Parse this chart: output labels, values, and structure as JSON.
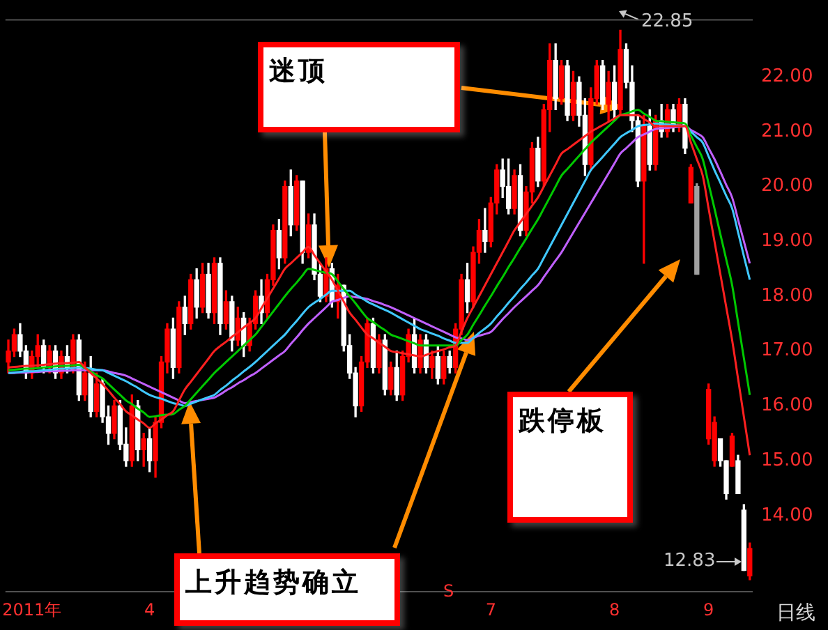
{
  "chart_data": {
    "type": "candlestick",
    "categories": [
      null,
      null,
      null,
      null,
      "2011年",
      null,
      null,
      null,
      null,
      null,
      null,
      null,
      null,
      null,
      null,
      null,
      null,
      null,
      null,
      null,
      null,
      null,
      null,
      null,
      "4",
      null,
      null,
      null,
      null,
      null,
      null,
      null,
      null,
      null,
      null,
      null,
      null,
      null,
      null,
      null,
      null,
      null,
      null,
      null,
      null,
      null,
      null,
      null,
      null,
      null,
      null,
      null,
      null,
      null,
      null,
      null,
      null,
      null,
      null,
      null,
      null,
      null,
      null,
      null,
      null,
      null,
      null,
      null,
      null,
      null,
      null,
      null,
      null,
      null,
      null,
      null,
      null,
      null,
      null,
      null,
      null,
      null,
      "7",
      null,
      null,
      null,
      null,
      null,
      null,
      null,
      null,
      null,
      null,
      null,
      null,
      null,
      null,
      null,
      null,
      null,
      null,
      null,
      null,
      "8",
      null,
      null,
      null,
      null,
      null,
      null,
      null,
      null,
      null,
      null,
      null,
      null,
      null,
      null,
      null,
      "9",
      null,
      null,
      null,
      null,
      null,
      null,
      null
    ],
    "ohlc": [
      [
        16.8,
        17.2,
        16.6,
        17.0
      ],
      [
        17.0,
        17.4,
        16.9,
        17.3
      ],
      [
        17.3,
        17.5,
        16.9,
        17.0
      ],
      [
        17.0,
        17.1,
        16.5,
        16.6
      ],
      [
        16.6,
        17.0,
        16.5,
        16.9
      ],
      [
        16.9,
        17.3,
        16.7,
        17.1
      ],
      [
        17.1,
        17.2,
        16.6,
        16.7
      ],
      [
        16.7,
        17.1,
        16.6,
        17.0
      ],
      [
        17.0,
        17.1,
        16.5,
        16.6
      ],
      [
        16.6,
        17.0,
        16.5,
        16.9
      ],
      [
        16.9,
        17.1,
        16.6,
        16.7
      ],
      [
        16.7,
        17.3,
        16.6,
        17.2
      ],
      [
        17.2,
        17.3,
        16.1,
        16.2
      ],
      [
        16.2,
        16.8,
        16.1,
        16.6
      ],
      [
        16.6,
        16.9,
        15.8,
        15.9
      ],
      [
        15.9,
        16.6,
        15.8,
        16.4
      ],
      [
        16.4,
        16.5,
        15.7,
        15.8
      ],
      [
        15.8,
        16.0,
        15.3,
        15.5
      ],
      [
        15.5,
        16.1,
        15.4,
        16.0
      ],
      [
        16.0,
        16.1,
        15.2,
        15.3
      ],
      [
        15.3,
        15.6,
        14.9,
        15.0
      ],
      [
        15.0,
        16.2,
        14.9,
        16.0
      ],
      [
        16.0,
        16.1,
        15.0,
        15.2
      ],
      [
        15.2,
        15.5,
        14.9,
        15.4
      ],
      [
        15.4,
        15.6,
        14.8,
        15.0
      ],
      [
        15.0,
        15.8,
        14.7,
        15.7
      ],
      [
        15.7,
        16.9,
        15.6,
        16.8
      ],
      [
        16.8,
        17.5,
        16.6,
        17.4
      ],
      [
        17.4,
        17.6,
        16.5,
        16.7
      ],
      [
        16.7,
        17.9,
        16.6,
        17.8
      ],
      [
        17.8,
        18.0,
        17.3,
        17.5
      ],
      [
        17.5,
        18.4,
        17.4,
        18.3
      ],
      [
        18.3,
        18.5,
        17.6,
        17.8
      ],
      [
        17.8,
        18.6,
        17.7,
        18.4
      ],
      [
        18.4,
        18.6,
        17.6,
        17.7
      ],
      [
        17.7,
        18.7,
        17.5,
        18.6
      ],
      [
        18.6,
        18.7,
        17.3,
        17.5
      ],
      [
        17.5,
        18.1,
        17.4,
        17.9
      ],
      [
        17.9,
        18.0,
        17.0,
        17.2
      ],
      [
        17.2,
        17.8,
        17.1,
        17.6
      ],
      [
        17.6,
        17.7,
        16.9,
        17.1
      ],
      [
        17.1,
        17.6,
        17.0,
        17.5
      ],
      [
        17.5,
        18.1,
        17.4,
        18.0
      ],
      [
        18.0,
        18.3,
        17.5,
        17.7
      ],
      [
        17.7,
        18.4,
        17.6,
        18.3
      ],
      [
        18.3,
        19.3,
        18.2,
        19.2
      ],
      [
        19.2,
        19.4,
        18.5,
        18.7
      ],
      [
        18.7,
        20.1,
        18.6,
        20.0
      ],
      [
        20.0,
        20.3,
        19.1,
        19.3
      ],
      [
        19.3,
        20.2,
        19.2,
        20.1
      ],
      [
        20.1,
        20.1,
        18.6,
        18.8
      ],
      [
        18.8,
        19.5,
        18.7,
        19.3
      ],
      [
        19.3,
        19.5,
        18.3,
        18.4
      ],
      [
        18.4,
        18.6,
        17.9,
        18.0
      ],
      [
        18.0,
        18.7,
        17.9,
        18.5
      ],
      [
        18.5,
        18.6,
        17.8,
        17.9
      ],
      [
        17.9,
        18.4,
        17.6,
        18.2
      ],
      [
        18.2,
        18.2,
        17.0,
        17.1
      ],
      [
        17.1,
        17.3,
        16.5,
        16.6
      ],
      [
        16.6,
        16.7,
        15.8,
        16.0
      ],
      [
        16.0,
        16.9,
        15.9,
        16.8
      ],
      [
        16.8,
        17.6,
        16.7,
        17.5
      ],
      [
        17.5,
        17.6,
        16.6,
        16.7
      ],
      [
        16.7,
        17.3,
        16.6,
        17.2
      ],
      [
        17.2,
        17.3,
        16.2,
        16.3
      ],
      [
        16.3,
        16.8,
        16.2,
        16.7
      ],
      [
        16.7,
        17.0,
        16.1,
        16.2
      ],
      [
        16.2,
        17.0,
        16.1,
        16.9
      ],
      [
        16.9,
        17.4,
        16.8,
        17.3
      ],
      [
        17.3,
        17.6,
        16.6,
        16.7
      ],
      [
        16.7,
        17.3,
        16.6,
        17.2
      ],
      [
        17.2,
        17.3,
        16.6,
        16.7
      ],
      [
        16.7,
        17.0,
        16.5,
        16.9
      ],
      [
        16.9,
        17.1,
        16.4,
        16.5
      ],
      [
        16.5,
        17.0,
        16.4,
        16.9
      ],
      [
        16.9,
        17.0,
        16.6,
        16.7
      ],
      [
        16.7,
        17.5,
        16.6,
        17.4
      ],
      [
        17.4,
        18.4,
        17.3,
        18.3
      ],
      [
        18.3,
        18.6,
        17.7,
        17.9
      ],
      [
        17.9,
        18.9,
        17.8,
        18.8
      ],
      [
        18.8,
        19.4,
        18.6,
        19.2
      ],
      [
        19.2,
        19.6,
        18.8,
        19.0
      ],
      [
        19.0,
        19.8,
        18.9,
        19.7
      ],
      [
        19.7,
        20.4,
        19.5,
        20.3
      ],
      [
        20.3,
        20.5,
        19.8,
        20.0
      ],
      [
        20.0,
        20.5,
        19.5,
        19.6
      ],
      [
        19.6,
        20.3,
        19.5,
        20.2
      ],
      [
        20.2,
        20.4,
        19.1,
        19.2
      ],
      [
        19.2,
        20.0,
        19.1,
        19.9
      ],
      [
        19.9,
        20.8,
        19.7,
        20.7
      ],
      [
        20.7,
        20.9,
        20.0,
        20.1
      ],
      [
        20.1,
        21.5,
        20.0,
        21.4
      ],
      [
        21.4,
        22.6,
        21.0,
        22.3
      ],
      [
        22.3,
        22.6,
        21.4,
        21.6
      ],
      [
        21.6,
        22.3,
        21.5,
        22.2
      ],
      [
        22.2,
        22.3,
        21.2,
        21.3
      ],
      [
        21.3,
        22.1,
        21.2,
        21.9
      ],
      [
        21.9,
        22.0,
        21.1,
        21.3
      ],
      [
        21.3,
        21.6,
        20.2,
        20.4
      ],
      [
        20.4,
        21.8,
        20.3,
        21.6
      ],
      [
        21.6,
        22.3,
        21.5,
        22.2
      ],
      [
        22.2,
        22.3,
        21.4,
        21.5
      ],
      [
        21.5,
        22.1,
        21.2,
        21.9
      ],
      [
        21.9,
        22.2,
        21.2,
        21.4
      ],
      [
        21.4,
        22.85,
        21.3,
        22.5
      ],
      [
        22.5,
        22.6,
        21.8,
        21.9
      ],
      [
        21.9,
        22.2,
        21.0,
        21.2
      ],
      [
        21.2,
        21.3,
        20.0,
        20.1
      ],
      [
        20.1,
        21.3,
        18.6,
        21.1
      ],
      [
        21.1,
        21.4,
        20.3,
        20.4
      ],
      [
        20.4,
        21.3,
        20.3,
        21.2
      ],
      [
        21.2,
        21.5,
        20.9,
        21.0
      ],
      [
        21.0,
        21.5,
        20.9,
        21.4
      ],
      [
        21.4,
        21.5,
        21.0,
        21.1
      ],
      [
        21.1,
        21.6,
        21.0,
        21.5
      ],
      [
        21.5,
        21.6,
        20.6,
        20.7
      ],
      [
        19.7,
        20.4,
        19.7,
        20.35
      ],
      [
        20.0,
        20.05,
        18.4,
        18.4
      ],
      null,
      [
        15.4,
        16.4,
        15.3,
        16.3
      ],
      [
        15.0,
        15.8,
        14.9,
        15.7
      ],
      [
        15.4,
        15.4,
        14.9,
        15.0
      ],
      [
        15.0,
        15.0,
        14.3,
        14.4
      ],
      [
        14.9,
        15.5,
        14.9,
        15.45
      ],
      [
        15.0,
        15.1,
        14.4,
        14.4
      ],
      [
        14.1,
        14.2,
        13.0,
        13.0
      ],
      [
        12.9,
        13.5,
        12.83,
        13.4
      ]
    ],
    "colors": [
      "#ff0000",
      "#ff0000",
      "#ffffff",
      "#ffffff",
      "#ff0000",
      "#ff0000",
      "#ffffff",
      "#ff0000",
      "#ffffff",
      "#ff0000",
      "#ffffff",
      "#ff0000",
      "#ffffff",
      "#ff0000",
      "#ffffff",
      "#ff0000",
      "#ffffff",
      "#ffffff",
      "#ff0000",
      "#ffffff",
      "#ffffff",
      "#ff0000",
      "#ffffff",
      "#ff0000",
      "#ffffff",
      "#ff0000",
      "#ff0000",
      "#ff0000",
      "#ffffff",
      "#ff0000",
      "#ffffff",
      "#ff0000",
      "#ffffff",
      "#ff0000",
      "#ffffff",
      "#ff0000",
      "#ffffff",
      "#ff0000",
      "#ffffff",
      "#ff0000",
      "#ffffff",
      "#ff0000",
      "#ff0000",
      "#ffffff",
      "#ff0000",
      "#ff0000",
      "#ffffff",
      "#ff0000",
      "#ffffff",
      "#ff0000",
      "#ffffff",
      "#ff0000",
      "#ffffff",
      "#ffffff",
      "#ff0000",
      "#ffffff",
      "#ff0000",
      "#ffffff",
      "#ffffff",
      "#ffffff",
      "#ff0000",
      "#ff0000",
      "#ffffff",
      "#ff0000",
      "#ffffff",
      "#ff0000",
      "#ffffff",
      "#ff0000",
      "#ff0000",
      "#ffffff",
      "#ff0000",
      "#ffffff",
      "#ff0000",
      "#ffffff",
      "#ff0000",
      "#ffffff",
      "#ff0000",
      "#ff0000",
      "#ffffff",
      "#ff0000",
      "#ff0000",
      "#ffffff",
      "#ff0000",
      "#ff0000",
      "#ffffff",
      "#ffffff",
      "#ff0000",
      "#ffffff",
      "#ff0000",
      "#ff0000",
      "#ffffff",
      "#ff0000",
      "#ff0000",
      "#ffffff",
      "#ff0000",
      "#ffffff",
      "#ff0000",
      "#ffffff",
      "#ffffff",
      "#ff0000",
      "#ff0000",
      "#ffffff",
      "#ff0000",
      "#ffffff",
      "#ff0000",
      "#ffffff",
      "#ffffff",
      "#ffffff",
      "#ff0000",
      "#ffffff",
      "#ff0000",
      "#ffffff",
      "#ff0000",
      "#ffffff",
      "#ff0000",
      "#ffffff",
      "#ff0000",
      "#a0a0a0",
      null,
      "#ff0000",
      "#ff0000",
      "#ffffff",
      "#ffffff",
      "#ff0000",
      "#ffffff",
      "#ffffff",
      "#ff0000"
    ],
    "series": [
      {
        "type": "line",
        "color": "#ff2020",
        "values": [
          16.7,
          16.71,
          16.72,
          16.73,
          16.73,
          16.74,
          16.75,
          16.76,
          16.77,
          16.78,
          16.78,
          16.79,
          16.8,
          16.7,
          16.6,
          16.5,
          16.4,
          16.28,
          16.15,
          16.03,
          15.9,
          15.83,
          15.75,
          15.68,
          15.6,
          15.68,
          15.75,
          15.83,
          15.9,
          16.1,
          16.3,
          16.44,
          16.58,
          16.72,
          16.86,
          17.0,
          17.09,
          17.17,
          17.26,
          17.34,
          17.43,
          17.51,
          17.6,
          17.78,
          17.96,
          18.14,
          18.32,
          18.5,
          18.6,
          18.7,
          18.8,
          18.9,
          18.75,
          18.6,
          18.45,
          18.3,
          18.1,
          17.9,
          17.7,
          17.57,
          17.43,
          17.3,
          17.23,
          17.15,
          17.08,
          17.0,
          16.98,
          16.96,
          16.94,
          16.92,
          16.9,
          16.93,
          16.97,
          17.0,
          17.03,
          17.07,
          17.1,
          17.35,
          17.6,
          17.8,
          18.0,
          18.2,
          18.4,
          18.6,
          18.8,
          19.0,
          19.2,
          19.35,
          19.5,
          19.65,
          19.8,
          20.0,
          20.2,
          20.4,
          20.6,
          20.68,
          20.76,
          20.84,
          20.92,
          21.0,
          21.06,
          21.12,
          21.18,
          21.24,
          21.3,
          21.3,
          21.3,
          21.3,
          21.23,
          21.17,
          21.1,
          21.1,
          21.1,
          21.1,
          21.1,
          21.1,
          20.8,
          20.5,
          20.2,
          19.6,
          19.0,
          18.4,
          17.8,
          17.2,
          16.5,
          15.8,
          15.1
        ]
      },
      {
        "type": "line",
        "color": "#00c800",
        "values": [
          16.65,
          16.66,
          16.67,
          16.68,
          16.68,
          16.69,
          16.7,
          16.71,
          16.72,
          16.73,
          16.73,
          16.74,
          16.75,
          16.69,
          16.63,
          16.56,
          16.5,
          16.4,
          16.3,
          16.2,
          16.1,
          16.03,
          15.95,
          15.88,
          15.8,
          15.81,
          15.83,
          15.84,
          15.85,
          15.93,
          16.0,
          16.12,
          16.24,
          16.36,
          16.48,
          16.6,
          16.7,
          16.8,
          16.9,
          17.0,
          17.1,
          17.2,
          17.3,
          17.44,
          17.58,
          17.72,
          17.86,
          18.0,
          18.13,
          18.25,
          18.38,
          18.5,
          18.48,
          18.45,
          18.43,
          18.4,
          18.27,
          18.13,
          18.0,
          17.87,
          17.73,
          17.6,
          17.53,
          17.45,
          17.38,
          17.3,
          17.26,
          17.22,
          17.18,
          17.14,
          17.1,
          17.1,
          17.1,
          17.1,
          17.1,
          17.1,
          17.1,
          17.2,
          17.3,
          17.48,
          17.65,
          17.83,
          18.0,
          18.18,
          18.35,
          18.53,
          18.7,
          18.88,
          19.05,
          19.23,
          19.4,
          19.6,
          19.8,
          20.0,
          20.2,
          20.32,
          20.44,
          20.56,
          20.68,
          20.8,
          20.9,
          21.0,
          21.1,
          21.2,
          21.3,
          21.33,
          21.37,
          21.4,
          21.33,
          21.27,
          21.2,
          21.19,
          21.18,
          21.17,
          21.16,
          21.15,
          20.93,
          20.72,
          20.5,
          20.05,
          19.6,
          19.13,
          18.67,
          18.2,
          17.53,
          16.87,
          16.2
        ]
      },
      {
        "type": "line",
        "color": "#40c8ff",
        "values": [
          16.6,
          16.61,
          16.62,
          16.63,
          16.63,
          16.64,
          16.65,
          16.66,
          16.67,
          16.68,
          16.68,
          16.69,
          16.7,
          16.69,
          16.68,
          16.66,
          16.65,
          16.6,
          16.55,
          16.5,
          16.45,
          16.39,
          16.33,
          16.26,
          16.2,
          16.16,
          16.13,
          16.09,
          16.05,
          16.03,
          16.0,
          16.04,
          16.08,
          16.12,
          16.16,
          16.2,
          16.29,
          16.37,
          16.46,
          16.54,
          16.63,
          16.71,
          16.8,
          16.9,
          17.0,
          17.1,
          17.2,
          17.3,
          17.43,
          17.55,
          17.68,
          17.8,
          17.88,
          17.95,
          18.03,
          18.1,
          18.1,
          18.1,
          18.1,
          18.03,
          17.97,
          17.9,
          17.85,
          17.8,
          17.75,
          17.7,
          17.64,
          17.58,
          17.52,
          17.46,
          17.4,
          17.36,
          17.32,
          17.28,
          17.23,
          17.19,
          17.15,
          17.15,
          17.15,
          17.24,
          17.33,
          17.41,
          17.5,
          17.63,
          17.75,
          17.88,
          18.0,
          18.13,
          18.25,
          18.38,
          18.5,
          18.7,
          18.9,
          19.1,
          19.3,
          19.5,
          19.7,
          19.9,
          20.1,
          20.3,
          20.42,
          20.54,
          20.66,
          20.78,
          20.9,
          20.97,
          21.03,
          21.1,
          21.12,
          21.13,
          21.15,
          21.14,
          21.13,
          21.12,
          21.11,
          21.1,
          21.0,
          20.9,
          20.8,
          20.55,
          20.3,
          20.07,
          19.83,
          19.6,
          19.17,
          18.73,
          18.3
        ]
      },
      {
        "type": "line",
        "color": "#c060ff",
        "values": [
          16.6,
          16.6,
          16.61,
          16.61,
          16.62,
          16.62,
          16.63,
          16.63,
          16.63,
          16.64,
          16.64,
          16.65,
          16.65,
          16.65,
          16.65,
          16.65,
          16.65,
          16.63,
          16.6,
          16.58,
          16.55,
          16.5,
          16.45,
          16.4,
          16.35,
          16.3,
          16.25,
          16.2,
          16.15,
          16.1,
          16.05,
          16.07,
          16.09,
          16.11,
          16.13,
          16.15,
          16.21,
          16.28,
          16.34,
          16.41,
          16.47,
          16.54,
          16.6,
          16.68,
          16.76,
          16.84,
          16.92,
          17.0,
          17.13,
          17.25,
          17.38,
          17.5,
          17.6,
          17.7,
          17.8,
          17.9,
          17.93,
          17.97,
          18.0,
          17.98,
          17.97,
          17.95,
          17.91,
          17.88,
          17.84,
          17.8,
          17.75,
          17.7,
          17.65,
          17.6,
          17.55,
          17.5,
          17.45,
          17.4,
          17.35,
          17.3,
          17.25,
          17.23,
          17.2,
          17.24,
          17.28,
          17.31,
          17.35,
          17.46,
          17.58,
          17.69,
          17.8,
          17.9,
          18.0,
          18.1,
          18.2,
          18.35,
          18.5,
          18.65,
          18.8,
          18.98,
          19.16,
          19.34,
          19.52,
          19.7,
          19.88,
          20.06,
          20.24,
          20.42,
          20.6,
          20.7,
          20.8,
          20.9,
          20.95,
          21.0,
          21.05,
          21.06,
          21.07,
          21.08,
          21.09,
          21.1,
          21.03,
          20.97,
          20.9,
          20.7,
          20.5,
          20.27,
          20.03,
          19.8,
          19.4,
          19.0,
          18.6
        ]
      }
    ],
    "ylim": [
      12.6,
      23.05
    ],
    "yticks": [
      {
        "value": 14,
        "label": "14.00"
      },
      {
        "value": 15,
        "label": "15.00"
      },
      {
        "value": 16,
        "label": "16.00"
      },
      {
        "value": 17,
        "label": "17.00"
      },
      {
        "value": 18,
        "label": "18.00"
      },
      {
        "value": 19,
        "label": "19.00"
      },
      {
        "value": 20,
        "label": "20.00"
      },
      {
        "value": 21,
        "label": "21.00"
      },
      {
        "value": 22,
        "label": "22.00"
      }
    ],
    "marker": "none",
    "line_style": "solid",
    "annotations": [
      "22.85",
      "12.83",
      "迷顶",
      "上升趋势确立",
      "跌停板",
      "S",
      "日线"
    ]
  }
}
